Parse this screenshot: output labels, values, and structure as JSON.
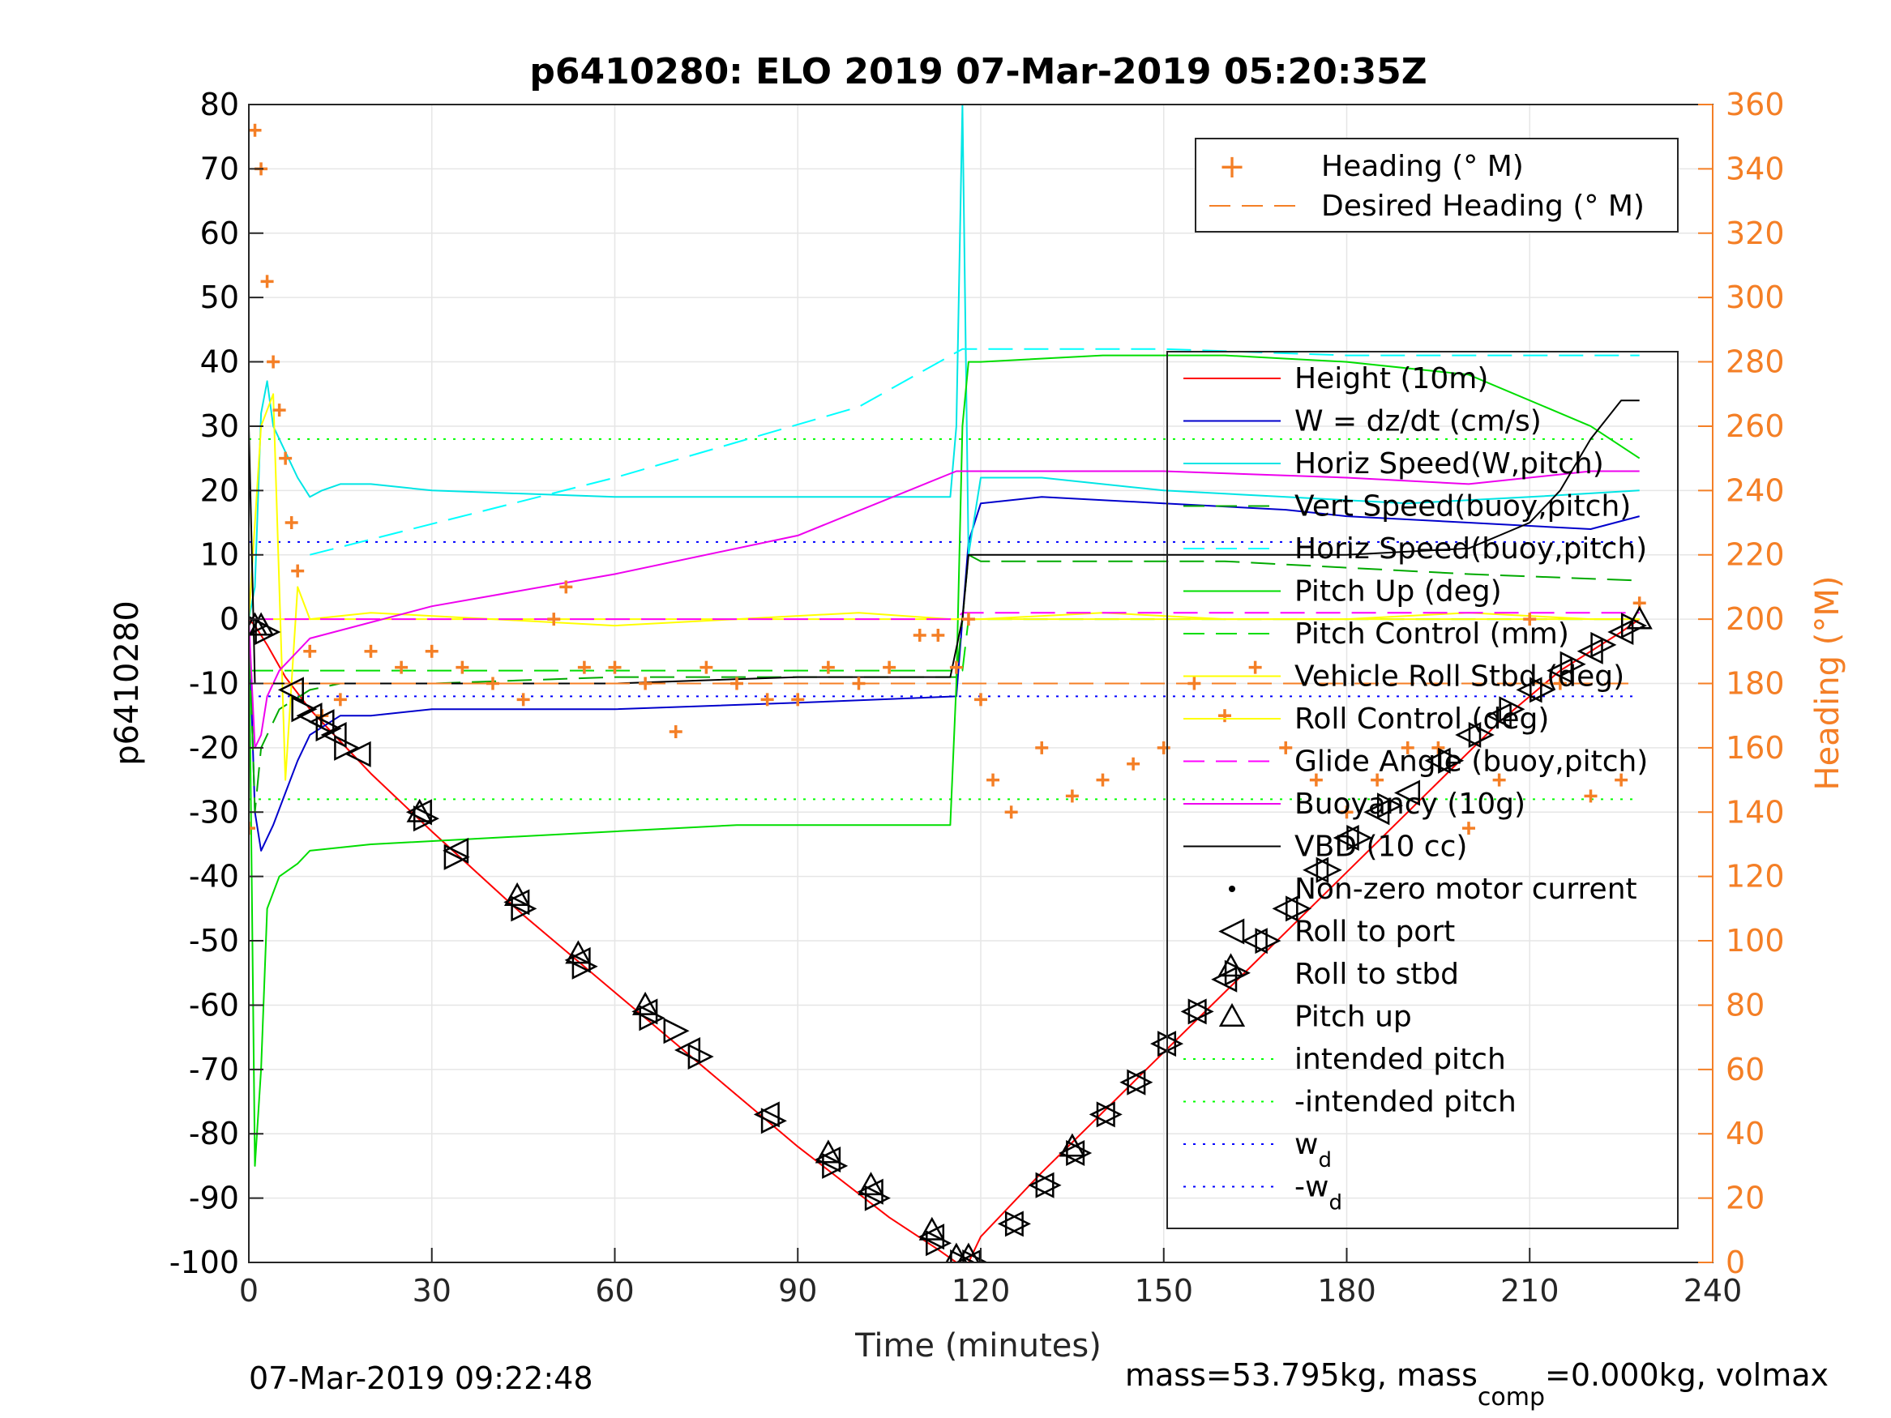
{
  "chart_data": {
    "type": "line",
    "title": "p6410280: ELO 2019 07-Mar-2019 05:20:35Z",
    "xlabel": "Time (minutes)",
    "ylabel": "p6410280",
    "y2label": "Heading (°M)",
    "xlim": [
      0,
      240
    ],
    "ylim": [
      -100,
      80
    ],
    "y2lim": [
      0,
      360
    ],
    "xticks": [
      0,
      30,
      60,
      90,
      120,
      150,
      180,
      210,
      240
    ],
    "yticks": [
      80,
      70,
      60,
      50,
      40,
      30,
      20,
      10,
      0,
      -10,
      -20,
      -30,
      -40,
      -50,
      -60,
      -70,
      -80,
      -90,
      -100
    ],
    "y2ticks": [
      360,
      340,
      320,
      300,
      280,
      260,
      240,
      220,
      200,
      180,
      160,
      140,
      120,
      100,
      80,
      60,
      40,
      20,
      0
    ],
    "grid": true,
    "footer_left": "07-Mar-2019 09:22:48",
    "footer_right": "mass=53.795kg, mass",
    "footer_right_sub": "comp",
    "footer_right_tail": "=0.000kg, volmax",
    "colors": {
      "heading": "#f47f26",
      "height": "#ff0000",
      "w": "#0000cc",
      "horiz_w": "#00e5e5",
      "vert_buoy": "#00aa00",
      "horiz_buoy": "#00ffff",
      "pitch": "#00dd00",
      "roll": "#ffff00",
      "glide": "#ff00ff",
      "buoyancy": "#ee00ee",
      "vbd": "#000000",
      "wd": "#0000ff",
      "intended": "#00ff00"
    },
    "legend_right": {
      "placement": "top-right",
      "entries": [
        "Heading (° M)",
        "Desired Heading (° M)"
      ]
    },
    "legend_left": {
      "placement": "right",
      "entries": [
        "Height (10m)",
        "W = dz/dt (cm/s)",
        "Horiz Speed(W,pitch)",
        "Vert Speed(buoy,pitch)",
        "Horiz Speed(buoy,pitch)",
        "Pitch Up (deg)",
        "Pitch Control (mm)",
        "Vehicle Roll Stbd (deg)",
        "Roll Control (deg)",
        "Glide Angle (buoy,pitch)",
        "Buoyancy (10g)",
        "VBD (10 cc)",
        "Non-zero motor current",
        "Roll to port",
        "Roll to stbd",
        "Pitch up",
        "intended pitch",
        "-intended pitch",
        "w",
        "-w"
      ],
      "subscript": "d"
    },
    "series": [
      {
        "key": "height",
        "name": "Height (10m)",
        "x": [
          0,
          1,
          3,
          6,
          10,
          15,
          20,
          30,
          45,
          60,
          75,
          90,
          105,
          113,
          116,
          118,
          120,
          130,
          145,
          160,
          175,
          190,
          205,
          215,
          225,
          228
        ],
        "y": [
          0,
          -1,
          -4,
          -9,
          -14,
          -19,
          -24,
          -33,
          -46,
          -58,
          -70,
          -82,
          -93,
          -98,
          -100,
          -100,
          -96,
          -86,
          -72,
          -58,
          -44,
          -30,
          -16,
          -8,
          -2,
          0
        ]
      },
      {
        "key": "w",
        "name": "W = dz/dt (cm/s)",
        "x": [
          0,
          1,
          2,
          4,
          6,
          8,
          10,
          15,
          20,
          30,
          60,
          90,
          116,
          117,
          118,
          120,
          130,
          150,
          170,
          180,
          200,
          220,
          228
        ],
        "y": [
          0,
          -30,
          -36,
          -32,
          -27,
          -22,
          -18,
          -15,
          -15,
          -14,
          -14,
          -13,
          -12,
          0,
          12,
          18,
          19,
          18,
          17,
          16,
          15,
          14,
          16
        ]
      },
      {
        "key": "horiz_w",
        "name": "Horiz Speed(W,pitch)",
        "x": [
          0,
          1,
          2,
          3,
          4,
          6,
          8,
          10,
          12,
          15,
          20,
          30,
          60,
          90,
          115,
          116,
          117,
          118,
          120,
          130,
          150,
          170,
          190,
          210,
          228
        ],
        "y": [
          0,
          5,
          32,
          37,
          30,
          26,
          22,
          19,
          20,
          21,
          21,
          20,
          19,
          19,
          19,
          30,
          80,
          10,
          22,
          22,
          20,
          19,
          18,
          19,
          20
        ]
      },
      {
        "key": "vert_buoy",
        "name": "Vert Speed(buoy,pitch)",
        "x": [
          0,
          1,
          2,
          5,
          10,
          15,
          20,
          30,
          60,
          90,
          116,
          117,
          118,
          120,
          140,
          160,
          180,
          200,
          228
        ],
        "y": [
          0,
          -30,
          -20,
          -14,
          -11,
          -10,
          -10,
          -10,
          -9,
          -9,
          -9,
          0,
          10,
          9,
          9,
          9,
          8,
          7,
          6
        ]
      },
      {
        "key": "horiz_buoy",
        "name": "Horiz Speed(buoy,pitch)",
        "x": [
          10,
          60,
          100,
          117,
          120,
          150,
          180,
          210,
          228
        ],
        "y": [
          10,
          22,
          33,
          42,
          42,
          42,
          41,
          41,
          41
        ]
      },
      {
        "key": "pitch",
        "name": "Pitch Up (deg)",
        "x": [
          0,
          1,
          2,
          3,
          5,
          8,
          10,
          20,
          40,
          60,
          80,
          100,
          115,
          116,
          117,
          118,
          120,
          140,
          160,
          180,
          200,
          220,
          228
        ],
        "y": [
          0,
          -85,
          -70,
          -45,
          -40,
          -38,
          -36,
          -35,
          -34,
          -33,
          -32,
          -32,
          -32,
          -10,
          30,
          40,
          40,
          41,
          41,
          40,
          38,
          30,
          25
        ]
      },
      {
        "key": "pitch_ctl",
        "name": "Pitch Control (mm)",
        "x": [
          0,
          117,
          118,
          228
        ],
        "y": [
          -8,
          -8,
          0,
          0
        ]
      },
      {
        "key": "roll",
        "name": "Vehicle Roll Stbd (deg)",
        "x": [
          0,
          2,
          4,
          6,
          8,
          10,
          20,
          40,
          60,
          80,
          100,
          115,
          117,
          120,
          140,
          160,
          180,
          200,
          220,
          228
        ],
        "y": [
          0,
          30,
          35,
          -25,
          5,
          0,
          1,
          0,
          -1,
          0,
          1,
          0,
          0,
          0,
          1,
          0,
          0,
          1,
          0,
          0
        ]
      },
      {
        "key": "roll_ctl",
        "name": "Roll Control (deg)",
        "x": [
          0,
          228
        ],
        "y": [
          0,
          0
        ]
      },
      {
        "key": "glide",
        "name": "Glide Angle (buoy,pitch)",
        "x": [
          0,
          20,
          60,
          116,
          117,
          120,
          180,
          228
        ],
        "y": [
          0,
          0,
          0,
          0,
          1,
          1,
          1,
          1
        ]
      },
      {
        "key": "buoyancy",
        "name": "Buoyancy (10g)",
        "x": [
          0,
          1,
          2,
          3,
          5,
          10,
          30,
          60,
          90,
          116,
          120,
          150,
          180,
          200,
          220,
          228
        ],
        "y": [
          0,
          -20,
          -18,
          -12,
          -8,
          -3,
          2,
          7,
          13,
          23,
          23,
          23,
          22,
          21,
          23,
          23
        ]
      },
      {
        "key": "vbd",
        "name": "VBD (10 cc)",
        "x": [
          0,
          1,
          2,
          10,
          30,
          60,
          90,
          115,
          117,
          118,
          120,
          150,
          180,
          200,
          210,
          215,
          220,
          225,
          228
        ],
        "y": [
          30,
          -10,
          -10,
          -10,
          -10,
          -10,
          -9,
          -9,
          0,
          10,
          10,
          10,
          10,
          11,
          15,
          20,
          28,
          34,
          34
        ]
      },
      {
        "key": "heading",
        "name": "Heading (° M)",
        "x": [
          0,
          1,
          2,
          3,
          4,
          5,
          6,
          7,
          8,
          10,
          12,
          15,
          20,
          25,
          30,
          35,
          40,
          45,
          50,
          52,
          55,
          60,
          65,
          70,
          75,
          80,
          85,
          90,
          95,
          100,
          105,
          110,
          113,
          116,
          118,
          120,
          122,
          125,
          130,
          135,
          140,
          145,
          150,
          155,
          160,
          165,
          170,
          175,
          180,
          185,
          190,
          195,
          200,
          205,
          210,
          215,
          220,
          225,
          228
        ],
        "y": [
          135,
          352,
          340,
          305,
          280,
          265,
          250,
          230,
          215,
          190,
          170,
          175,
          190,
          185,
          190,
          185,
          180,
          175,
          200,
          210,
          185,
          185,
          180,
          165,
          185,
          180,
          175,
          175,
          185,
          180,
          185,
          195,
          195,
          185,
          200,
          175,
          150,
          140,
          160,
          145,
          150,
          155,
          160,
          180,
          170,
          185,
          160,
          150,
          140,
          150,
          160,
          160,
          135,
          150,
          200,
          180,
          145,
          150,
          205
        ]
      },
      {
        "key": "desired_heading",
        "name": "Desired Heading (° M)",
        "x": [
          0,
          228
        ],
        "y": [
          180,
          180
        ]
      }
    ],
    "markers": {
      "roll_to_port": {
        "x": [
          7,
          10,
          12,
          14,
          18,
          28,
          34,
          44,
          54,
          65,
          72,
          85,
          95,
          102,
          112,
          118,
          125,
          130,
          135,
          140,
          145,
          150,
          155,
          160,
          165,
          170,
          175,
          180,
          185,
          190,
          195,
          200,
          205,
          210,
          215,
          220,
          225
        ],
        "y": [
          -11,
          -15,
          -16,
          -18,
          -21,
          -30,
          -36,
          -44,
          -53,
          -61,
          -67,
          -77,
          -84,
          -89,
          -96,
          -100,
          -94,
          -88,
          -83,
          -77,
          -72,
          -66,
          -61,
          -56,
          -50,
          -45,
          -39,
          -34,
          -30,
          -27,
          -22,
          -18,
          -15,
          -11,
          -8,
          -5,
          -2
        ]
      },
      "roll_to_stbd": {
        "x": [
          1,
          3,
          9,
          13,
          16,
          29,
          34,
          45,
          55,
          66,
          70,
          74,
          86,
          96,
          103,
          113,
          117,
          119,
          126,
          131,
          136,
          141,
          146,
          151,
          156,
          162,
          167,
          172,
          177,
          182,
          187,
          197,
          202,
          207,
          212,
          217,
          222,
          227
        ],
        "y": [
          -1,
          -2,
          -14,
          -17,
          -20,
          -31,
          -37,
          -45,
          -54,
          -62,
          -64,
          -68,
          -78,
          -85,
          -90,
          -97,
          -100,
          -100,
          -94,
          -88,
          -83,
          -77,
          -72,
          -66,
          -61,
          -55,
          -50,
          -45,
          -39,
          -34,
          -29,
          -22,
          -18,
          -14,
          -11,
          -7,
          -4,
          -1
        ]
      },
      "pitch_up": {
        "x": [
          1,
          2,
          28,
          44,
          54,
          65,
          95,
          102,
          112,
          116,
          118,
          135,
          161,
          228
        ],
        "y": [
          -1,
          -1,
          -30,
          -43,
          -52,
          -60,
          -83,
          -88,
          -95,
          -99,
          -99,
          -82,
          -54,
          0
        ]
      }
    },
    "ref_lines": {
      "intended_pitch": 28,
      "neg_intended_pitch": -28,
      "wd": 12,
      "neg_wd": -12
    }
  }
}
